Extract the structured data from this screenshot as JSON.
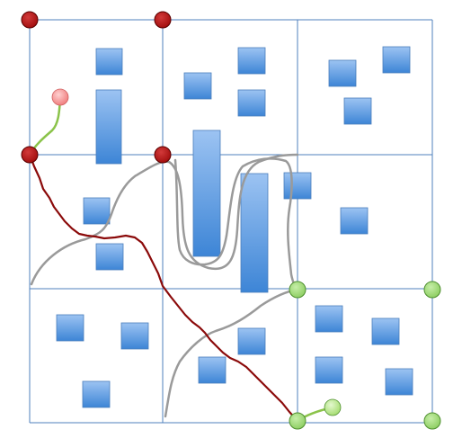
{
  "colors": {
    "background": "#ffffff",
    "grid_line": "#4f81bd",
    "block_top": "#9cc3f2",
    "block_bottom": "#3d85d6",
    "block_stroke": "#4a7ebb",
    "dark_node": "#a30f0f",
    "dark_node_stroke": "#5a0000",
    "green_node": "#8fcf64",
    "green_node_stroke": "#4f8f30",
    "pink_node": "#f08080",
    "path_red": "#8b0a0a",
    "path_gray": "#9a9a9a",
    "path_green": "#8bc34a"
  },
  "diagram": {
    "grid": {
      "description": "3x3 cell grid",
      "rows": 3,
      "cols": 3
    },
    "node_groups": [
      {
        "name": "dark-nodes",
        "count": 4
      },
      {
        "name": "green-nodes",
        "count": 4
      },
      {
        "name": "start-node",
        "count": 1
      },
      {
        "name": "goal-node",
        "count": 1
      }
    ],
    "paths": [
      {
        "name": "red-path"
      },
      {
        "name": "gray-path-upper"
      },
      {
        "name": "gray-path-middle"
      },
      {
        "name": "gray-path-lower"
      },
      {
        "name": "green-start-link"
      },
      {
        "name": "green-goal-link"
      }
    ]
  }
}
